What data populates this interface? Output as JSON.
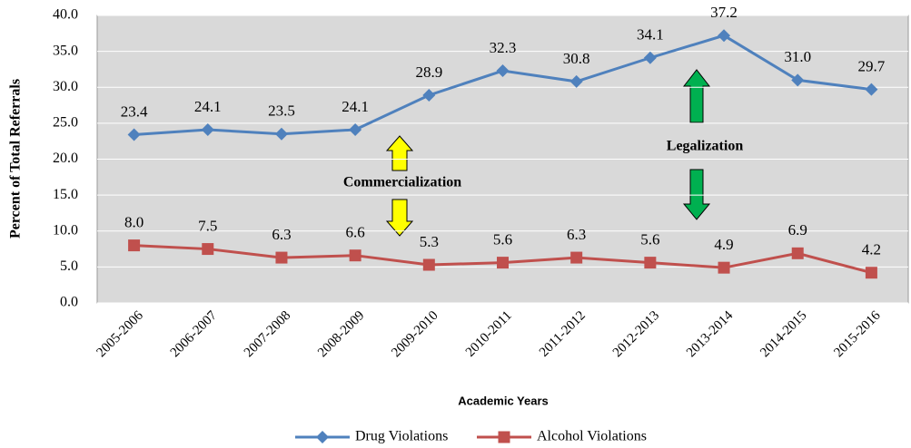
{
  "chart_data": {
    "type": "line",
    "y_label": "Percent of Total Referrals",
    "x_label": "Academic Years",
    "categories": [
      "2005-2006",
      "2006-2007",
      "2007-2008",
      "2008-2009",
      "2009-2010",
      "2010-2011",
      "2011-2012",
      "2012-2013",
      "2013-2014",
      "2014-2015",
      "2015-2016"
    ],
    "series": [
      {
        "name": "Drug Violations",
        "color": "#4f81bd",
        "marker": "diamond",
        "values": [
          23.4,
          24.1,
          23.5,
          24.1,
          28.9,
          32.3,
          30.8,
          34.1,
          37.2,
          31.0,
          29.7
        ],
        "value_labels": [
          "23.4",
          "24.1",
          "23.5",
          "24.1",
          "28.9",
          "32.3",
          "30.8",
          "34.1",
          "37.2",
          "31.0",
          "29.7"
        ]
      },
      {
        "name": "Alcohol Violations",
        "color": "#c0504d",
        "marker": "square",
        "values": [
          8.0,
          7.5,
          6.3,
          6.6,
          5.3,
          5.6,
          6.3,
          5.6,
          4.9,
          6.9,
          4.2
        ],
        "value_labels": [
          "8.0",
          "7.5",
          "6.3",
          "6.6",
          "5.3",
          "5.6",
          "6.3",
          "5.6",
          "4.9",
          "6.9",
          "4.2"
        ]
      }
    ],
    "annotations": [
      "Commercialization",
      "Legalization"
    ],
    "ylim": [
      0,
      40
    ],
    "yticks": [
      {
        "value": 0,
        "label": "0.0"
      },
      {
        "value": 5,
        "label": "5.0"
      },
      {
        "value": 10,
        "label": "10.0"
      },
      {
        "value": 15,
        "label": "15.0"
      },
      {
        "value": 20,
        "label": "20.0"
      },
      {
        "value": 25,
        "label": "25.0"
      },
      {
        "value": 30,
        "label": "30.0"
      },
      {
        "value": 35,
        "label": "35.0"
      },
      {
        "value": 40,
        "label": "40.0"
      }
    ],
    "grid": true,
    "legend": "bottom"
  }
}
